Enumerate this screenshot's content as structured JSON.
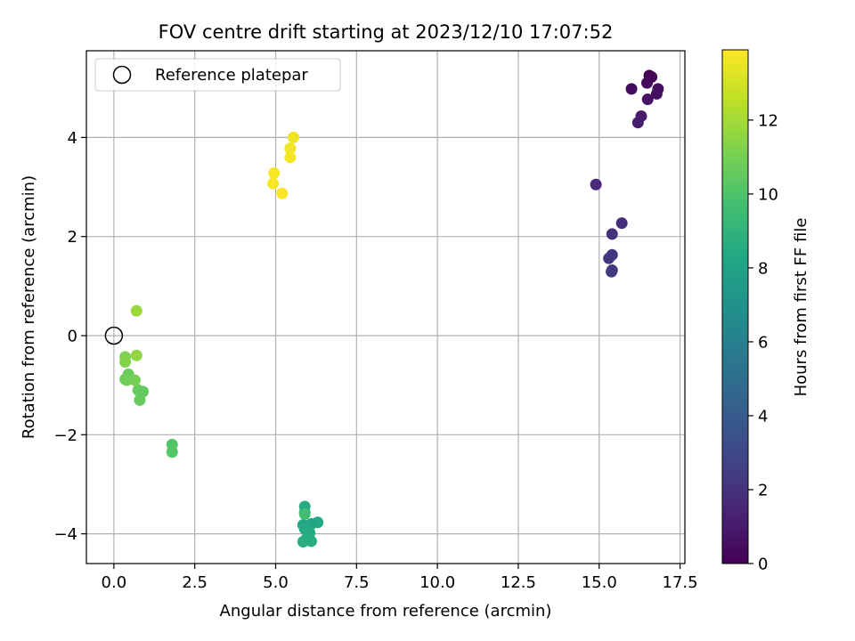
{
  "chart_data": {
    "type": "scatter",
    "title": "FOV centre drift starting at 2023/12/10 17:07:52",
    "xlabel": "Angular distance from reference (arcmin)",
    "ylabel": "Rotation from reference (arcmin)",
    "xlim": [
      -0.85,
      17.65
    ],
    "ylim": [
      -4.6,
      5.75
    ],
    "x_ticks": [
      0.0,
      2.5,
      5.0,
      7.5,
      10.0,
      12.5,
      15.0,
      17.5
    ],
    "x_tick_labels": [
      "0.0",
      "2.5",
      "5.0",
      "7.5",
      "10.0",
      "12.5",
      "15.0",
      "17.5"
    ],
    "y_ticks": [
      -4,
      -2,
      0,
      2,
      4
    ],
    "y_tick_labels": [
      "−4",
      "−2",
      "0",
      "2",
      "4"
    ],
    "grid": true,
    "legend_position": "top-left",
    "reference": {
      "name": "Reference platepar",
      "x": 0.0,
      "y": 0.0
    },
    "colorbar": {
      "label": "Hours from first FF file",
      "min": 0,
      "max": 13.9,
      "ticks": [
        0,
        2,
        4,
        6,
        8,
        10,
        12
      ],
      "tick_labels": [
        "0",
        "2",
        "4",
        "6",
        "8",
        "10",
        "12"
      ],
      "colormap": "viridis"
    },
    "points": [
      {
        "x": 16.55,
        "y": 5.25,
        "h": 0.1
      },
      {
        "x": 16.62,
        "y": 5.22,
        "h": 0.2
      },
      {
        "x": 16.48,
        "y": 5.1,
        "h": 0.3
      },
      {
        "x": 16.0,
        "y": 4.98,
        "h": 0.4
      },
      {
        "x": 16.82,
        "y": 4.98,
        "h": 0.5
      },
      {
        "x": 16.78,
        "y": 4.88,
        "h": 0.6
      },
      {
        "x": 16.5,
        "y": 4.77,
        "h": 0.7
      },
      {
        "x": 16.3,
        "y": 4.43,
        "h": 1.0
      },
      {
        "x": 16.2,
        "y": 4.3,
        "h": 1.1
      },
      {
        "x": 14.9,
        "y": 3.05,
        "h": 1.6
      },
      {
        "x": 15.7,
        "y": 2.27,
        "h": 1.9
      },
      {
        "x": 15.4,
        "y": 2.05,
        "h": 2.0
      },
      {
        "x": 15.4,
        "y": 1.63,
        "h": 2.1
      },
      {
        "x": 15.3,
        "y": 1.56,
        "h": 2.2
      },
      {
        "x": 15.4,
        "y": 1.32,
        "h": 2.3
      },
      {
        "x": 15.38,
        "y": 1.29,
        "h": 2.4
      },
      {
        "x": 5.9,
        "y": -3.45,
        "h": 8.5
      },
      {
        "x": 5.9,
        "y": -3.57,
        "h": 8.6
      },
      {
        "x": 6.3,
        "y": -3.77,
        "h": 8.4
      },
      {
        "x": 6.1,
        "y": -3.8,
        "h": 8.3
      },
      {
        "x": 5.85,
        "y": -3.82,
        "h": 8.2
      },
      {
        "x": 6.0,
        "y": -3.88,
        "h": 8.3
      },
      {
        "x": 5.9,
        "y": -3.9,
        "h": 8.4
      },
      {
        "x": 6.05,
        "y": -3.98,
        "h": 8.5
      },
      {
        "x": 5.95,
        "y": -4.1,
        "h": 8.6
      },
      {
        "x": 6.1,
        "y": -4.15,
        "h": 8.6
      },
      {
        "x": 5.85,
        "y": -4.16,
        "h": 8.7
      },
      {
        "x": 5.9,
        "y": -3.6,
        "h": 9.6
      },
      {
        "x": 1.8,
        "y": -2.2,
        "h": 10.1
      },
      {
        "x": 1.8,
        "y": -2.35,
        "h": 10.2
      },
      {
        "x": 0.9,
        "y": -1.13,
        "h": 10.5
      },
      {
        "x": 0.75,
        "y": -1.1,
        "h": 10.6
      },
      {
        "x": 0.8,
        "y": -1.3,
        "h": 10.6
      },
      {
        "x": 0.45,
        "y": -0.78,
        "h": 10.7
      },
      {
        "x": 0.35,
        "y": -0.88,
        "h": 10.8
      },
      {
        "x": 0.4,
        "y": -0.9,
        "h": 10.9
      },
      {
        "x": 0.65,
        "y": -0.9,
        "h": 11.0
      },
      {
        "x": 0.35,
        "y": -0.43,
        "h": 11.2
      },
      {
        "x": 0.35,
        "y": -0.53,
        "h": 11.3
      },
      {
        "x": 0.7,
        "y": -0.4,
        "h": 11.6
      },
      {
        "x": 0.7,
        "y": 0.5,
        "h": 11.8
      },
      {
        "x": 5.55,
        "y": 4.0,
        "h": 13.6
      },
      {
        "x": 5.45,
        "y": 3.78,
        "h": 13.6
      },
      {
        "x": 5.45,
        "y": 3.6,
        "h": 13.7
      },
      {
        "x": 4.95,
        "y": 3.28,
        "h": 13.7
      },
      {
        "x": 4.92,
        "y": 3.07,
        "h": 13.8
      },
      {
        "x": 5.2,
        "y": 2.87,
        "h": 13.8
      }
    ]
  }
}
